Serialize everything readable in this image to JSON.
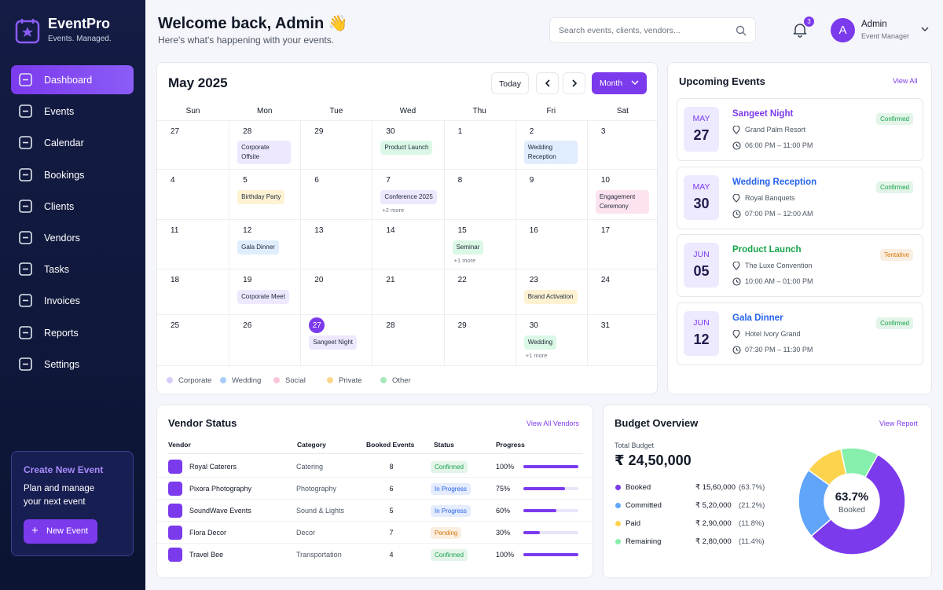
{
  "sidebar": {
    "brand": "EventPro",
    "tagline": "Events. Managed.",
    "nav": [
      "Dashboard",
      "Events",
      "Calendar",
      "Bookings",
      "Clients",
      "Vendors",
      "Tasks",
      "Invoices",
      "Reports",
      "Settings"
    ],
    "create": {
      "title": "Create New Event",
      "text": "Plan and manage your next event",
      "button": "New Event"
    }
  },
  "header": {
    "title": "Welcome back, Admin 👋",
    "subtitle": "Here's what's happening with your events.",
    "search": "Search events, clients, vendors...",
    "notifications": 3,
    "avatar": "A",
    "user": "Admin",
    "role": "Event Manager"
  },
  "calendar": {
    "month": "May 2025",
    "today_button": "Today",
    "view_button": "Month",
    "weekdays": [
      "Sun",
      "Mon",
      "Tue",
      "Wed",
      "Thu",
      "Fri",
      "Sat"
    ],
    "weeks": [
      [
        {
          "day": 27
        },
        {
          "day": 28,
          "event": "Corporate Offsite",
          "color": "#a78bfa"
        },
        {
          "day": 29
        },
        {
          "day": 30,
          "event": "Product Launch",
          "color": "#4ade80"
        },
        {
          "day": 1
        },
        {
          "day": 2,
          "event": "Wedding Reception",
          "color": "#60a5fa"
        },
        {
          "day": 3
        }
      ],
      [
        {
          "day": 4
        },
        {
          "day": 5,
          "event": "Birthday Party",
          "color": "#fbbf24"
        },
        {
          "day": 6
        },
        {
          "day": 7,
          "event": "Conference 2025",
          "color": "#a78bfa",
          "more": "+2 more"
        },
        {
          "day": 8
        },
        {
          "day": 9
        },
        {
          "day": 10,
          "event": "Engagement Ceremony",
          "color": "#f472b6"
        }
      ],
      [
        {
          "day": 11
        },
        {
          "day": 12,
          "event": "Gala Dinner",
          "color": "#60a5fa"
        },
        {
          "day": 13
        },
        {
          "day": 14
        },
        {
          "day": 15,
          "event": "Seminar",
          "color": "#4ade80",
          "more": "+1 more"
        },
        {
          "day": 16
        },
        {
          "day": 17
        }
      ],
      [
        {
          "day": 18
        },
        {
          "day": 19,
          "event": "Corporate Meet",
          "color": "#a78bfa"
        },
        {
          "day": 20
        },
        {
          "day": 21
        },
        {
          "day": 22
        },
        {
          "day": 23,
          "event": "Brand Activation",
          "color": "#fbbf24"
        },
        {
          "day": 24
        }
      ],
      [
        {
          "day": 25
        },
        {
          "day": 26
        },
        {
          "day": 27,
          "event": "Sangeet Night",
          "color": "#a78bfa",
          "today": true
        },
        {
          "day": 28
        },
        {
          "day": 29
        },
        {
          "day": 30,
          "event": "Wedding",
          "color": "#4ade80",
          "more": "+1 more"
        },
        {
          "day": 31
        }
      ]
    ],
    "legend": [
      {
        "label": "Corporate",
        "color": "#d8ccfb"
      },
      {
        "label": "Wedding",
        "color": "#a9cdfb"
      },
      {
        "label": "Social",
        "color": "#f9c4dc"
      },
      {
        "label": "Private",
        "color": "#fcd68a"
      },
      {
        "label": "Other",
        "color": "#a7e8bd"
      }
    ]
  },
  "upcoming": {
    "title": "Upcoming Events",
    "link": "View All",
    "events": [
      {
        "month": "MAY",
        "day": "27",
        "name": "Sangeet Night",
        "venue": "Grand Palm Resort",
        "time": "06:00 PM – 11:00 PM",
        "status": "Confirmed",
        "color": "#7c3aed",
        "status_color": "#16a34a"
      },
      {
        "month": "MAY",
        "day": "30",
        "name": "Wedding Reception",
        "venue": "Royal Banquets",
        "time": "07:00 PM – 12:00 AM",
        "status": "Confirmed",
        "color": "#2563eb",
        "status_color": "#16a34a"
      },
      {
        "month": "JUN",
        "day": "05",
        "name": "Product Launch",
        "venue": "The Luxe Convention",
        "time": "10:00 AM – 01:00 PM",
        "status": "Tentative",
        "color": "#16a34a",
        "status_color": "#d97706"
      },
      {
        "month": "JUN",
        "day": "12",
        "name": "Gala Dinner",
        "venue": "Hotel Ivory Grand",
        "time": "07:30 PM – 11:30 PM",
        "status": "Confirmed",
        "color": "#2563eb",
        "status_color": "#16a34a"
      }
    ]
  },
  "vendors": {
    "title": "Vendor Status",
    "link": "View All Vendors",
    "headers": [
      "Vendor",
      "Category",
      "Booked Events",
      "Status",
      "Progress"
    ],
    "rows": [
      {
        "vendor": "Royal Caterers",
        "category": "Catering",
        "booked": 8,
        "status": "Confirmed",
        "status_color": "#16a34a",
        "progress": 100,
        "progress_label": "100%"
      },
      {
        "vendor": "Pixora Photography",
        "category": "Photography",
        "booked": 6,
        "status": "In Progress",
        "status_color": "#2563eb",
        "progress": 75,
        "progress_label": "75%"
      },
      {
        "vendor": "SoundWave Events",
        "category": "Sound & Lights",
        "booked": 5,
        "status": "In Progress",
        "status_color": "#2563eb",
        "progress": 60,
        "progress_label": "60%"
      },
      {
        "vendor": "Flora Decor",
        "category": "Decor",
        "booked": 7,
        "status": "Pending",
        "status_color": "#d97706",
        "progress": 30,
        "progress_label": "30%"
      },
      {
        "vendor": "Travel Bee",
        "category": "Transportation",
        "booked": 4,
        "status": "Confirmed",
        "status_color": "#16a34a",
        "progress": 100,
        "progress_label": "100%"
      }
    ]
  },
  "budget": {
    "title": "Budget Overview",
    "link": "View Report",
    "total_label": "Total Budget",
    "total": "₹ 24,50,000",
    "center_value": "63.7%",
    "center_label": "Booked",
    "items": [
      {
        "name": "Booked",
        "amount": "₹ 15,60,000",
        "pct": 63.7,
        "pct_label": "(63.7%)",
        "color": "#7c3aed"
      },
      {
        "name": "Committed",
        "amount": "₹ 5,20,000",
        "pct": 21.2,
        "pct_label": "(21.2%)",
        "color": "#60a5fa"
      },
      {
        "name": "Paid",
        "amount": "₹ 2,90,000",
        "pct": 11.8,
        "pct_label": "(11.8%)",
        "color": "#fcd34d"
      },
      {
        "name": "Remaining",
        "amount": "₹ 2,80,000",
        "pct": 11.4,
        "pct_label": "(11.4%)",
        "color": "#86efac"
      }
    ]
  }
}
